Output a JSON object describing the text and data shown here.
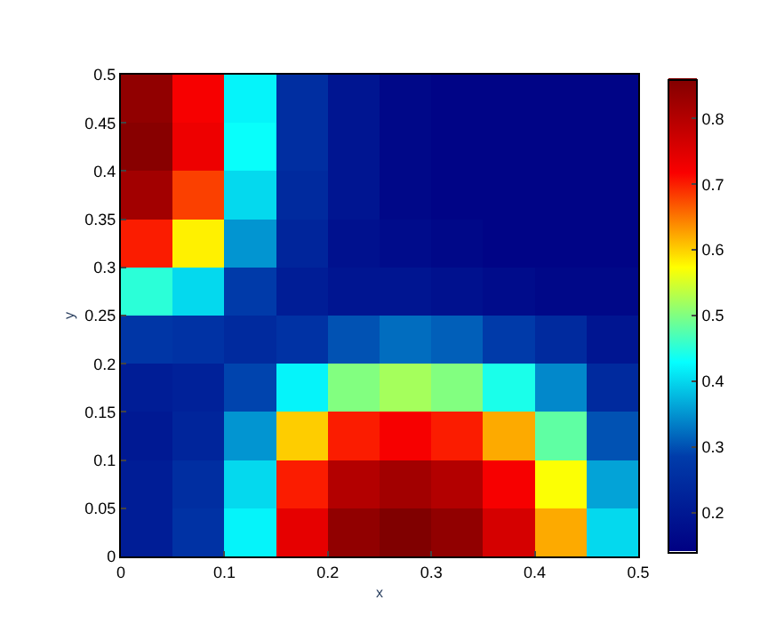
{
  "chart_data": {
    "type": "heatmap",
    "xlabel": "x",
    "ylabel": "y",
    "x": [
      0.025,
      0.075,
      0.125,
      0.175,
      0.225,
      0.275,
      0.325,
      0.375,
      0.425,
      0.475
    ],
    "y": [
      0.475,
      0.425,
      0.375,
      0.325,
      0.275,
      0.225,
      0.175,
      0.125,
      0.075,
      0.025
    ],
    "cells": [
      [
        0.84,
        0.72,
        0.42,
        0.25,
        0.19,
        0.16,
        0.15,
        0.15,
        0.15,
        0.15
      ],
      [
        0.85,
        0.73,
        0.43,
        0.25,
        0.19,
        0.16,
        0.15,
        0.15,
        0.15,
        0.15
      ],
      [
        0.82,
        0.68,
        0.4,
        0.24,
        0.19,
        0.16,
        0.15,
        0.15,
        0.15,
        0.15
      ],
      [
        0.7,
        0.58,
        0.35,
        0.23,
        0.18,
        0.17,
        0.16,
        0.15,
        0.15,
        0.15
      ],
      [
        0.45,
        0.4,
        0.28,
        0.21,
        0.19,
        0.19,
        0.18,
        0.17,
        0.16,
        0.16
      ],
      [
        0.27,
        0.26,
        0.24,
        0.26,
        0.3,
        0.32,
        0.31,
        0.28,
        0.24,
        0.19
      ],
      [
        0.21,
        0.22,
        0.29,
        0.42,
        0.5,
        0.52,
        0.5,
        0.44,
        0.34,
        0.24
      ],
      [
        0.2,
        0.23,
        0.35,
        0.6,
        0.7,
        0.72,
        0.7,
        0.62,
        0.48,
        0.3
      ],
      [
        0.21,
        0.25,
        0.4,
        0.7,
        0.8,
        0.82,
        0.8,
        0.72,
        0.57,
        0.36
      ],
      [
        0.21,
        0.26,
        0.42,
        0.74,
        0.84,
        0.86,
        0.84,
        0.76,
        0.62,
        0.4
      ]
    ],
    "xlim": [
      0,
      0.5
    ],
    "xticks": [
      0,
      0.1,
      0.2,
      0.3,
      0.4,
      0.5
    ],
    "ylim": [
      0,
      0.5
    ],
    "yticks": [
      0,
      0.05,
      0.1,
      0.15,
      0.2,
      0.25,
      0.3,
      0.35,
      0.4,
      0.45,
      0.5
    ],
    "clim": [
      0.14,
      0.86
    ],
    "cticks": [
      0.2,
      0.3,
      0.4,
      0.5,
      0.6,
      0.7,
      0.8
    ]
  }
}
